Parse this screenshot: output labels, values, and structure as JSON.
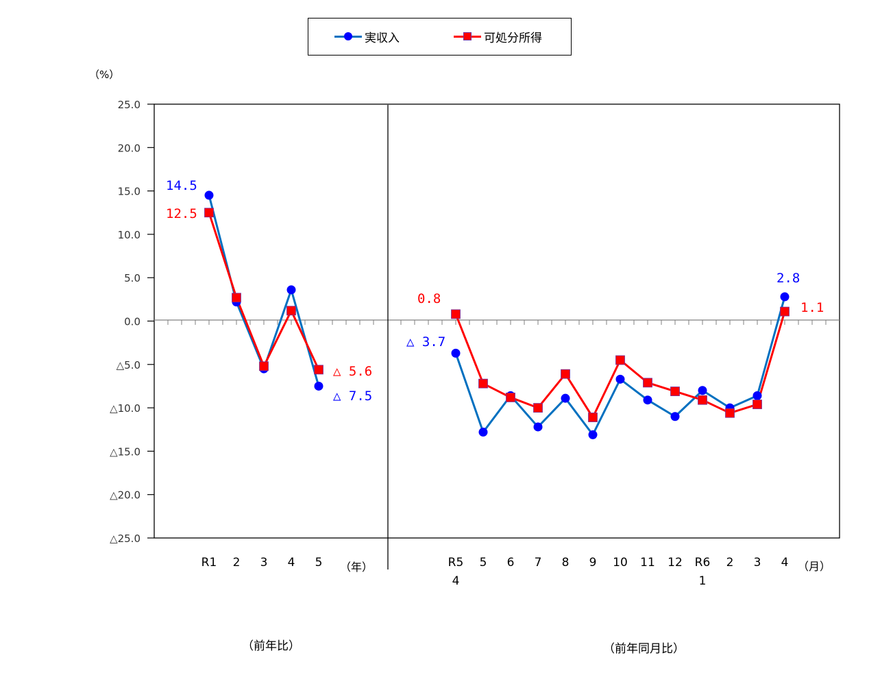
{
  "legend": {
    "items": [
      {
        "label": "実収入",
        "color": "#0070C0",
        "marker_color": "#0000FF",
        "marker": "circle"
      },
      {
        "label": "可処分所得",
        "color": "#FF0000",
        "marker_color": "#FF0000",
        "marker": "square"
      }
    ]
  },
  "axis": {
    "y_unit": "（%）",
    "y_ticks": [
      "25.0",
      "20.0",
      "15.0",
      "10.0",
      "5.0",
      "0.0",
      "△5.0",
      "△10.0",
      "△15.0",
      "△20.0",
      "△25.0"
    ],
    "annual_unit": "（年）",
    "monthly_unit": "（月）"
  },
  "captions": {
    "annual": "（前年比）",
    "monthly": "（前年同月比）"
  },
  "annotations": {
    "r1_real": "14.5",
    "r1_disp": "12.5",
    "r5_disp": "△ 5.6",
    "r5_real": "△ 7.5",
    "m_first_disp": "0.8",
    "m_first_real": "△ 3.7",
    "m_last_real": "2.8",
    "m_last_disp": "1.1"
  },
  "chart_data": {
    "type": "line",
    "title": "",
    "ylabel": "（%）",
    "ylim": [
      -25,
      25
    ],
    "yticks": [
      25,
      20,
      15,
      10,
      5,
      0,
      -5,
      -10,
      -15,
      -20,
      -25
    ],
    "grid": false,
    "legend_position": "top",
    "panels": [
      {
        "name": "前年比",
        "x_unit": "年",
        "categories": [
          "R1",
          "2",
          "3",
          "4",
          "5"
        ],
        "series": [
          {
            "name": "実収入",
            "values": [
              14.5,
              2.2,
              -5.5,
              3.6,
              -7.5
            ]
          },
          {
            "name": "可処分所得",
            "values": [
              12.5,
              2.7,
              -5.2,
              1.2,
              -5.6
            ]
          }
        ]
      },
      {
        "name": "前年同月比",
        "x_unit": "月",
        "categories": [
          "R5\n4",
          "5",
          "6",
          "7",
          "8",
          "9",
          "10",
          "11",
          "12",
          "R6\n1",
          "2",
          "3",
          "4"
        ],
        "series": [
          {
            "name": "実収入",
            "values": [
              -3.7,
              -12.8,
              -8.6,
              -12.2,
              -8.9,
              -13.1,
              -6.7,
              -9.1,
              -11.0,
              -8.0,
              -10.0,
              -8.6,
              2.8
            ]
          },
          {
            "name": "可処分所得",
            "values": [
              0.8,
              -7.2,
              -8.8,
              -10.0,
              -6.1,
              -11.1,
              -4.5,
              -7.1,
              -8.1,
              -9.1,
              -10.6,
              -9.6,
              1.1
            ]
          }
        ]
      }
    ],
    "annotations": [
      "14.5",
      "12.5",
      "△ 5.6",
      "△ 7.5",
      "0.8",
      "△ 3.7",
      "2.8",
      "1.1"
    ]
  }
}
